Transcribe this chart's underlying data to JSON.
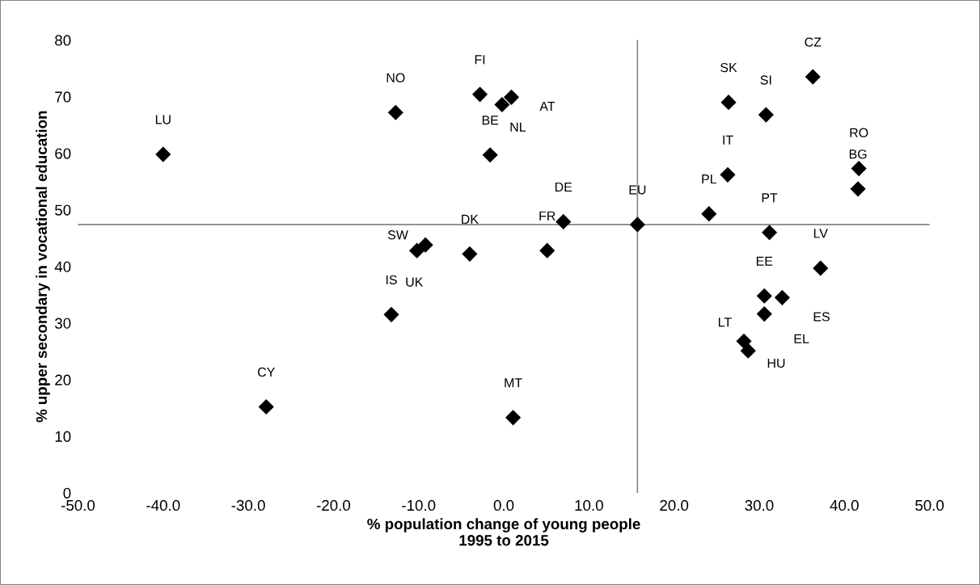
{
  "chart_data": {
    "type": "scatter",
    "xlabel": "% population change of young people\n1995 to 2015",
    "ylabel": "% upper secondary in vocational education",
    "xlim": [
      -50,
      50
    ],
    "ylim": [
      0,
      80
    ],
    "xticks": [
      {
        "value": -50,
        "label": "-50.0"
      },
      {
        "value": -40,
        "label": "-40.0"
      },
      {
        "value": -30,
        "label": "-30.0"
      },
      {
        "value": -20,
        "label": "-20.0"
      },
      {
        "value": -10,
        "label": "-10.0"
      },
      {
        "value": 0,
        "label": "0.0"
      },
      {
        "value": 10,
        "label": "10.0"
      },
      {
        "value": 20,
        "label": "20.0"
      },
      {
        "value": 30,
        "label": "30.0"
      },
      {
        "value": 40,
        "label": "40.0"
      },
      {
        "value": 50,
        "label": "50.0"
      }
    ],
    "yticks": [
      0,
      10,
      20,
      30,
      40,
      50,
      60,
      70,
      80
    ],
    "marker": "diamond",
    "grid": false,
    "series": [
      {
        "color": "#000000",
        "x": [
          -40.0,
          -27.9,
          -12.7,
          -2.8,
          -0.2,
          0.9,
          -1.6,
          7.0,
          15.7,
          -10.2,
          -9.2,
          -4.0,
          5.1,
          -13.2,
          1.1,
          26.4,
          30.8,
          36.3,
          26.3,
          41.7,
          41.6,
          24.1,
          31.2,
          37.2,
          30.6,
          32.7,
          30.6,
          28.2,
          28.7
        ],
        "values": [
          59.8,
          15.2,
          67.2,
          70.4,
          68.6,
          69.9,
          59.7,
          47.9,
          47.4,
          42.8,
          43.8,
          42.2,
          42.8,
          31.5,
          13.3,
          69.0,
          66.8,
          73.5,
          56.2,
          57.3,
          53.7,
          49.3,
          46.0,
          39.7,
          34.8,
          34.5,
          31.6,
          26.8,
          25.1
        ]
      }
    ],
    "annotations": [
      {
        "text": "LU",
        "x": -40.0,
        "y": 59.8
      },
      {
        "text": "CY",
        "x": -27.9,
        "y": 15.2
      },
      {
        "text": "NO",
        "x": -12.7,
        "y": 67.2
      },
      {
        "text": "FI",
        "x": -2.8,
        "y": 70.4
      },
      {
        "text": "NL",
        "x": -0.2,
        "y": 68.6
      },
      {
        "text": "AT",
        "x": 0.9,
        "y": 69.9
      },
      {
        "text": "BE",
        "x": -1.6,
        "y": 59.7
      },
      {
        "text": "DE",
        "x": 7.0,
        "y": 47.9
      },
      {
        "text": "EU",
        "x": 15.7,
        "y": 47.4
      },
      {
        "text": "SW",
        "x": -10.2,
        "y": 42.8
      },
      {
        "text": "UK",
        "x": -9.2,
        "y": 43.8
      },
      {
        "text": "DK",
        "x": -4.0,
        "y": 42.2
      },
      {
        "text": "FR",
        "x": 5.1,
        "y": 42.8
      },
      {
        "text": "IS",
        "x": -13.2,
        "y": 31.5
      },
      {
        "text": "MT",
        "x": 1.1,
        "y": 13.3
      },
      {
        "text": "SK",
        "x": 26.4,
        "y": 69.0
      },
      {
        "text": "SI",
        "x": 30.8,
        "y": 66.8
      },
      {
        "text": "CZ",
        "x": 36.3,
        "y": 73.5
      },
      {
        "text": "IT",
        "x": 26.3,
        "y": 56.2
      },
      {
        "text": "RO",
        "x": 41.7,
        "y": 57.3
      },
      {
        "text": "BG",
        "x": 41.6,
        "y": 53.7
      },
      {
        "text": "PL",
        "x": 24.1,
        "y": 49.3
      },
      {
        "text": "PT",
        "x": 31.2,
        "y": 46.0
      },
      {
        "text": "LV",
        "x": 37.2,
        "y": 39.7
      },
      {
        "text": "EE",
        "x": 30.6,
        "y": 34.8
      },
      {
        "text": "ES",
        "x": 32.7,
        "y": 34.5
      },
      {
        "text": "EL",
        "x": 30.6,
        "y": 31.6
      },
      {
        "text": "LT",
        "x": 28.2,
        "y": 26.8
      },
      {
        "text": "HU",
        "x": 28.7,
        "y": 25.1
      }
    ],
    "ref_lines": [
      {
        "axis": "x",
        "value": 15.7,
        "color": "#868686"
      },
      {
        "axis": "y",
        "value": 47.4,
        "color": "#868686"
      }
    ]
  }
}
